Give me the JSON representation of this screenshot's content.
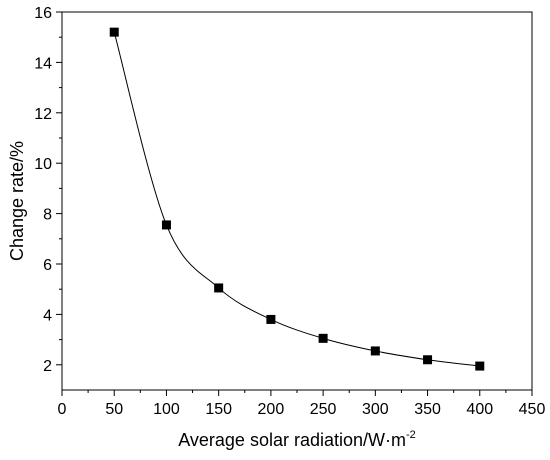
{
  "chart_data": {
    "type": "line",
    "x": [
      50,
      100,
      150,
      200,
      250,
      300,
      350,
      400
    ],
    "series": [
      {
        "values": [
          15.2,
          7.55,
          5.05,
          3.8,
          3.05,
          2.55,
          2.2,
          1.95
        ]
      }
    ],
    "xlabel": {
      "text": "Average solar radiation/W·m",
      "superscript": "-2"
    },
    "ylabel": "Change rate/%",
    "xlim": [
      0,
      450
    ],
    "ylim": [
      1,
      16
    ],
    "xticks": [
      "0",
      "50",
      "100",
      "150",
      "200",
      "250",
      "300",
      "350",
      "400",
      "450"
    ],
    "yticks": [
      "2",
      "4",
      "6",
      "8",
      "10",
      "12",
      "14",
      "16"
    ],
    "grid": false,
    "marker": "square",
    "colors": {
      "line": "#000000",
      "marker": "#000000",
      "axis": "#000000"
    }
  }
}
